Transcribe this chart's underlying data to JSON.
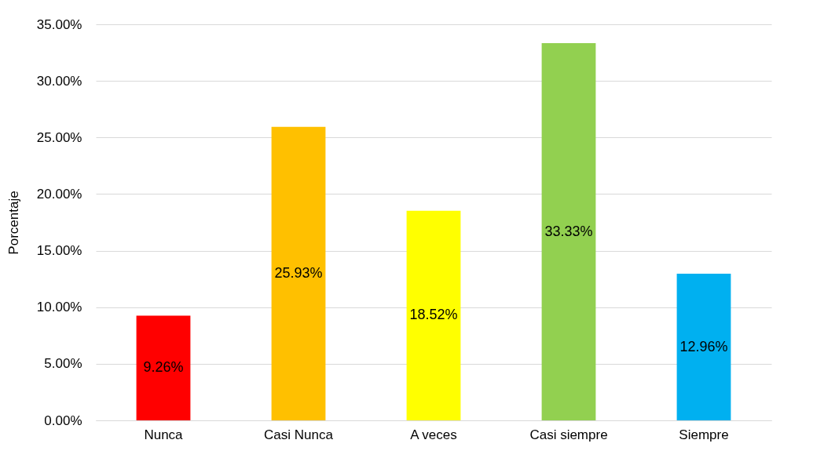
{
  "chart_data": {
    "type": "bar",
    "ylabel": "Porcentaje",
    "categories": [
      "Nunca",
      "Casi Nunca",
      "A veces",
      "Casi siempre",
      "Siempre"
    ],
    "values": [
      9.26,
      25.93,
      18.52,
      33.33,
      12.96
    ],
    "colors": [
      "#ff0000",
      "#ffc000",
      "#ffff00",
      "#92d050",
      "#00b0f0"
    ],
    "value_labels": [
      "9.26%",
      "25.93%",
      "18.52%",
      "33.33%",
      "12.96%"
    ],
    "ylim": [
      0,
      35
    ],
    "yticks": [
      {
        "value": 0,
        "label": "0.00%"
      },
      {
        "value": 5,
        "label": "5.00%"
      },
      {
        "value": 10,
        "label": "10.00%"
      },
      {
        "value": 15,
        "label": "15.00%"
      },
      {
        "value": 20,
        "label": "20.00%"
      },
      {
        "value": 25,
        "label": "25.00%"
      },
      {
        "value": 30,
        "label": "30.00%"
      },
      {
        "value": 35,
        "label": "35.00%"
      }
    ],
    "grid": "y"
  }
}
